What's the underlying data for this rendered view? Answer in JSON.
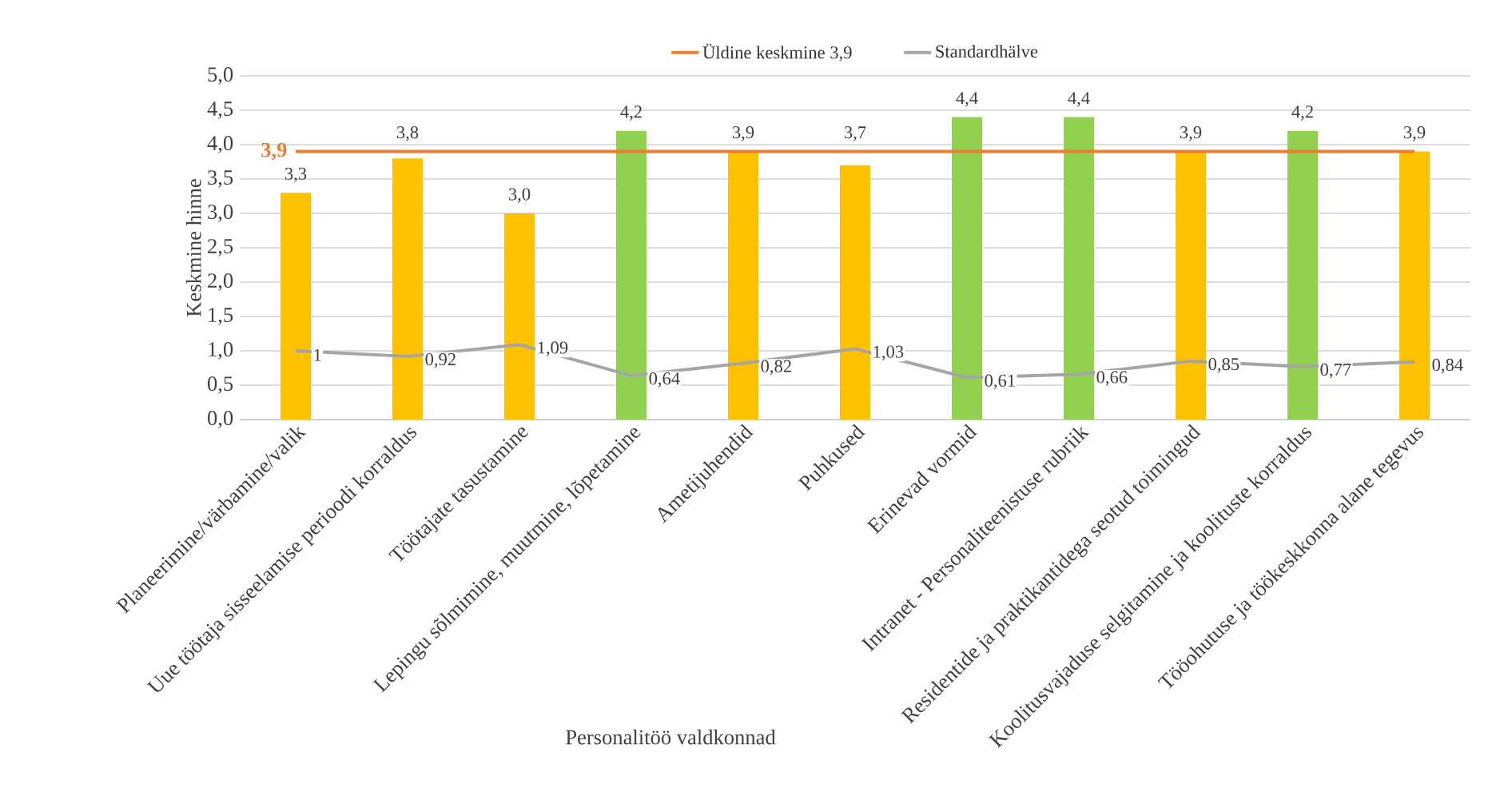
{
  "chart_data": {
    "type": "bar",
    "xlabel": "Personalitöö valdkonnad",
    "ylabel": "Keskmine hinne",
    "categories": [
      "Planeerimine/värbamine/valik",
      "Uue töötaja sisseelamise perioodi korraldus",
      "Töötajate tasustamine",
      "Lepingu sõlmimine, muutmine, lõpetamine",
      "Ametijuhendid",
      "Puhkused",
      "Erinevad vormid",
      "Intranet - Personaliteenistuse rubriik",
      "Residentide ja praktikantidega seotud toimingud",
      "Koolitusvajaduse selgitamine ja koolituste korraldus",
      "Tööohutuse ja töökeskkonna alane tegevus"
    ],
    "ylim": [
      0,
      5
    ],
    "yticks": [
      {
        "value": 0,
        "label": "0,0"
      },
      {
        "value": 0.5,
        "label": "0,5"
      },
      {
        "value": 1,
        "label": "1,0"
      },
      {
        "value": 1.5,
        "label": "1,5"
      },
      {
        "value": 2,
        "label": "2,0"
      },
      {
        "value": 2.5,
        "label": "2,5"
      },
      {
        "value": 3,
        "label": "3,0"
      },
      {
        "value": 3.5,
        "label": "3,5"
      },
      {
        "value": 4,
        "label": "4,0"
      },
      {
        "value": 4.5,
        "label": "4,5"
      },
      {
        "value": 5,
        "label": "5,0"
      }
    ],
    "grid": "y",
    "legend": "top",
    "marker": "none",
    "line_style": "solid",
    "series": [
      {
        "colors": [
          "#ffc000",
          "#ffc000",
          "#ffc000",
          "#92d050",
          "#ffc000",
          "#ffc000",
          "#92d050",
          "#92d050",
          "#ffc000",
          "#92d050",
          "#ffc000"
        ],
        "values": [
          3.3,
          3.8,
          3.0,
          4.2,
          3.9,
          3.7,
          4.4,
          4.4,
          3.9,
          4.2,
          3.9
        ],
        "value_labels": [
          "3,3",
          "3,8",
          "3,0",
          "4,2",
          "3,9",
          "3,7",
          "4,4",
          "4,4",
          "3,9",
          "4,2",
          "3,9"
        ]
      },
      {
        "type": "line",
        "name": "Üldine keskmine 3,9",
        "color": "#ed7d31",
        "values": [
          3.9,
          3.9,
          3.9,
          3.9,
          3.9,
          3.9,
          3.9,
          3.9,
          3.9,
          3.9,
          3.9
        ]
      },
      {
        "type": "line",
        "name": "Standardhälve",
        "color": "#a5a5a5",
        "values": [
          1,
          0.92,
          1.09,
          0.64,
          0.82,
          1.03,
          0.61,
          0.66,
          0.85,
          0.77,
          0.84
        ],
        "value_labels": [
          "1",
          "0,92",
          "1,09",
          "0,64",
          "0,82",
          "1,03",
          "0,61",
          "0,66",
          "0,85",
          "0,77",
          "0,84"
        ]
      }
    ],
    "annotations": [
      "3,9"
    ]
  }
}
